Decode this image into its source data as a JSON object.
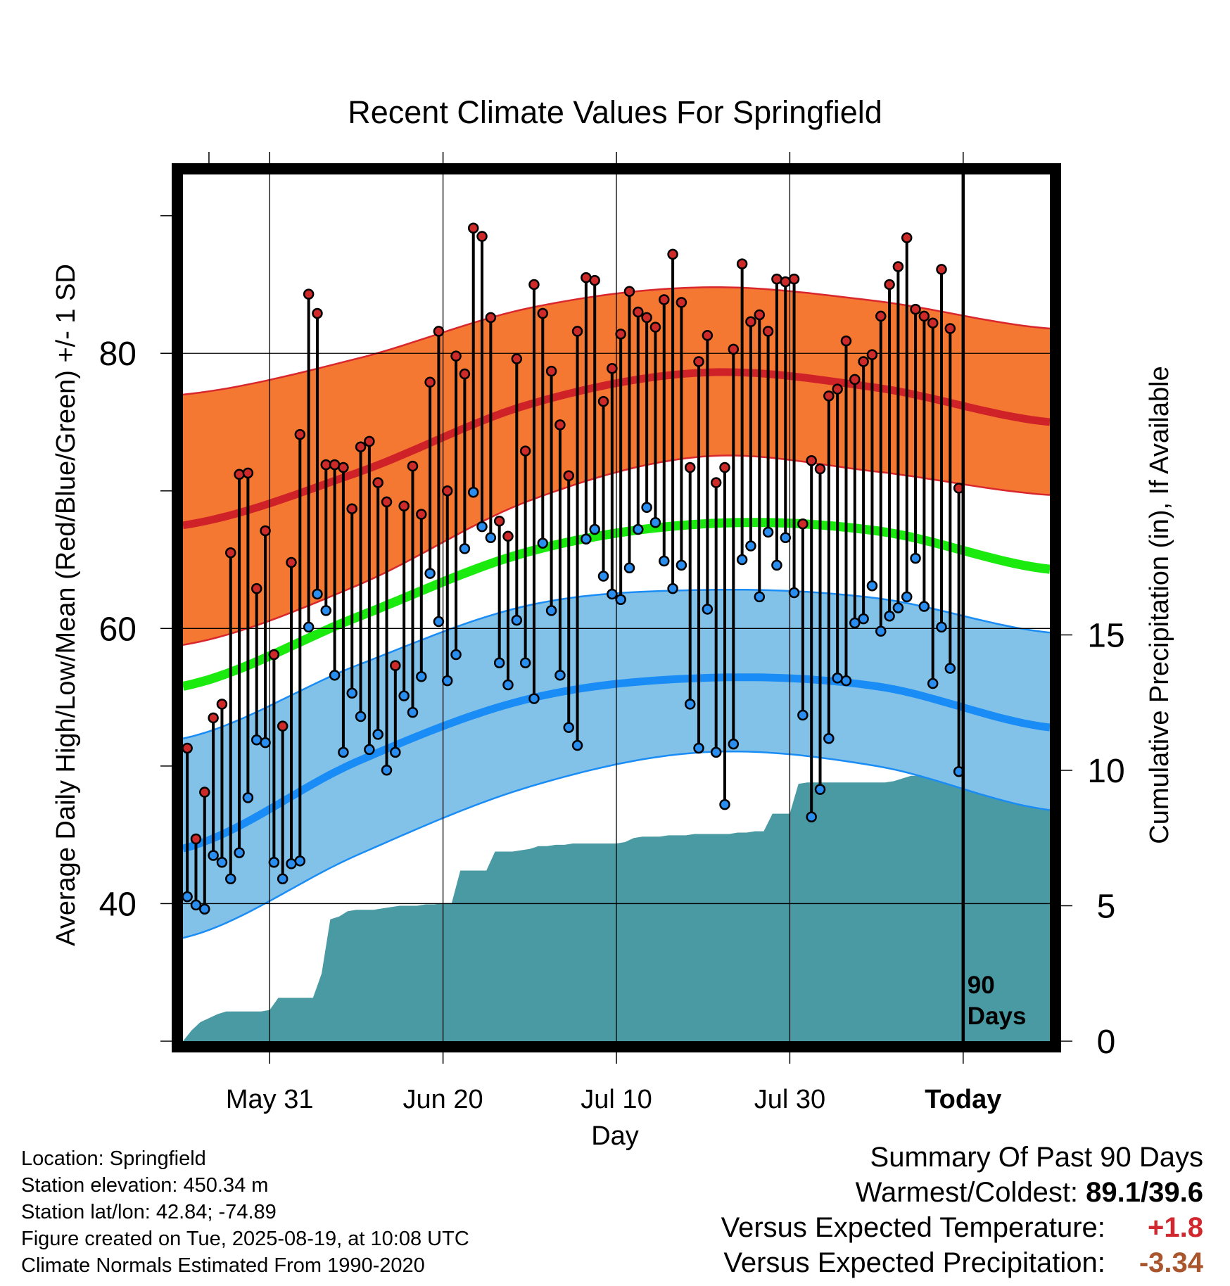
{
  "chart_data": {
    "type": "line",
    "title": "Recent Climate Values For Springfield",
    "xlabel": "Day",
    "ylabel": "Average Daily High/Low/Mean (Red/Blue/Green) +/- 1 SD",
    "y2label": "Cumulative Precipitation (in), If Available",
    "x_tick_labels": [
      "May 31",
      "Jun 20",
      "Jul 10",
      "Jul 30",
      "Today"
    ],
    "y_ticks": [
      40,
      60,
      80
    ],
    "y_minor_ticks": [
      30,
      50,
      70,
      90
    ],
    "y2_ticks": [
      0,
      5,
      10,
      15
    ],
    "ylim": [
      30,
      93
    ],
    "y2lim": [
      0,
      32
    ],
    "days_shown": 100,
    "today_day": 90,
    "marker_label_line1": "90",
    "marker_label_line2": "Days",
    "grid": true,
    "normals": {
      "day": [
        0,
        20,
        40,
        60,
        80,
        100
      ],
      "high_mean": [
        67.5,
        71.3,
        76.3,
        78.6,
        77.5,
        75.0
      ],
      "high_sd_upper": [
        77.0,
        79.6,
        83.3,
        84.8,
        83.8,
        81.8
      ],
      "high_sd_lower": [
        58.8,
        63.1,
        69.3,
        72.5,
        71.4,
        69.7
      ],
      "mean": [
        55.8,
        60.8,
        65.6,
        67.6,
        67.1,
        64.3
      ],
      "low_mean": [
        44.0,
        50.3,
        54.9,
        56.4,
        55.8,
        52.8
      ],
      "low_sd_upper": [
        52.0,
        57.3,
        61.7,
        62.8,
        62.2,
        59.7
      ],
      "low_sd_lower": [
        37.5,
        43.5,
        48.5,
        51.0,
        50.0,
        46.8
      ]
    },
    "daily_high": [
      51.3,
      44.7,
      48.1,
      53.5,
      54.5,
      65.5,
      71.2,
      71.3,
      62.9,
      67.1,
      58.1,
      52.9,
      64.8,
      74.1,
      84.3,
      82.9,
      71.9,
      71.9,
      71.7,
      68.7,
      73.2,
      73.6,
      70.6,
      69.2,
      57.3,
      68.9,
      71.8,
      68.3,
      77.9,
      81.6,
      70.0,
      79.8,
      78.5,
      89.1,
      88.5,
      82.6,
      67.8,
      66.7,
      79.6,
      72.9,
      85.0,
      82.9,
      78.7,
      74.8,
      71.1,
      81.6,
      85.5,
      85.3,
      76.5,
      78.9,
      81.4,
      84.5,
      83.0,
      82.6,
      81.9,
      83.9,
      87.2,
      83.7,
      71.7,
      79.4,
      81.3,
      70.6,
      71.7,
      80.3,
      86.5,
      82.3,
      82.8,
      81.6,
      85.4,
      85.2,
      85.4,
      67.6,
      72.2,
      71.6,
      76.9,
      77.4,
      80.9,
      78.1,
      79.4,
      79.9,
      82.7,
      85.0,
      86.3,
      88.4,
      83.2,
      82.7,
      82.2,
      86.1,
      81.8,
      70.2
    ],
    "daily_low": [
      40.5,
      39.9,
      39.6,
      43.5,
      43.0,
      41.8,
      43.7,
      47.7,
      51.9,
      51.7,
      43.0,
      41.8,
      42.9,
      43.1,
      60.1,
      62.5,
      61.3,
      56.6,
      51.0,
      55.3,
      53.6,
      51.2,
      52.3,
      49.7,
      51.0,
      55.1,
      53.9,
      56.5,
      64.0,
      60.5,
      56.2,
      58.1,
      65.8,
      69.9,
      67.4,
      66.6,
      57.5,
      55.9,
      60.6,
      57.5,
      54.9,
      66.2,
      61.3,
      56.6,
      52.8,
      51.5,
      66.5,
      67.2,
      63.8,
      62.5,
      62.1,
      64.4,
      67.2,
      68.8,
      67.7,
      64.9,
      62.9,
      64.6,
      54.5,
      51.3,
      61.4,
      51.0,
      47.2,
      51.6,
      65.0,
      66.0,
      62.3,
      67.0,
      64.6,
      66.6,
      62.6,
      53.7,
      46.3,
      48.3,
      52.0,
      56.4,
      56.2,
      60.4,
      60.7,
      63.1,
      59.8,
      60.9,
      61.5,
      62.3,
      65.1,
      61.6,
      56.0,
      60.1,
      57.1,
      49.6
    ],
    "cumulative_precip": {
      "day": [
        0,
        1,
        2,
        3,
        4,
        5,
        6,
        7,
        8,
        9,
        10,
        11,
        12,
        13,
        14,
        15,
        16,
        17,
        18,
        19,
        20,
        21,
        22,
        23,
        24,
        25,
        26,
        27,
        28,
        29,
        30,
        31,
        32,
        33,
        34,
        35,
        36,
        37,
        38,
        39,
        40,
        41,
        42,
        43,
        44,
        45,
        46,
        47,
        48,
        49,
        50,
        51,
        52,
        53,
        54,
        55,
        56,
        57,
        58,
        59,
        60,
        61,
        62,
        63,
        64,
        65,
        66,
        67,
        68,
        69,
        70,
        71,
        72,
        73,
        74,
        75,
        76,
        77,
        78,
        79,
        80,
        81,
        82,
        83,
        84,
        85,
        86,
        87,
        88,
        89,
        90,
        100
      ],
      "value": [
        0.0,
        0.4,
        0.7,
        0.85,
        1.0,
        1.1,
        1.1,
        1.1,
        1.1,
        1.1,
        1.15,
        1.6,
        1.6,
        1.6,
        1.6,
        1.6,
        2.5,
        4.5,
        4.6,
        4.8,
        4.85,
        4.85,
        4.85,
        4.9,
        4.95,
        5.0,
        5.0,
        5.0,
        5.05,
        5.05,
        5.1,
        5.1,
        6.3,
        6.3,
        6.3,
        6.3,
        7.0,
        7.0,
        7.0,
        7.05,
        7.1,
        7.2,
        7.2,
        7.25,
        7.25,
        7.3,
        7.3,
        7.3,
        7.3,
        7.3,
        7.3,
        7.35,
        7.5,
        7.55,
        7.55,
        7.55,
        7.6,
        7.6,
        7.6,
        7.65,
        7.65,
        7.65,
        7.65,
        7.65,
        7.7,
        7.7,
        7.75,
        7.75,
        8.4,
        8.4,
        8.4,
        9.5,
        9.55,
        9.55,
        9.55,
        9.55,
        9.55,
        9.55,
        9.55,
        9.55,
        9.55,
        9.55,
        9.6,
        9.7,
        9.8,
        9.8,
        9.8,
        9.8,
        9.8,
        9.85,
        9.85,
        9.85
      ]
    }
  },
  "info": {
    "location": "Location: Springfield",
    "elevation": "Station elevation: 450.34 m",
    "latlon": "Station lat/lon: 42.84; -74.89",
    "created": "Figure created on Tue, 2025-08-19, at 10:08 UTC",
    "normals": "Climate Normals Estimated From 1990-2020"
  },
  "summary": {
    "title": "Summary Of Past 90 Days",
    "warmest_label": "Warmest/Coldest:",
    "warmest_value": "89.1/39.6",
    "temp_label": "Versus Expected Temperature:",
    "temp_value": "+1.8",
    "precip_label": "Versus Expected Precipitation:",
    "precip_value": "-3.34"
  },
  "colors": {
    "high_band": "#f47832",
    "high_edge": "#d9272e",
    "high_mean": "#cf2228",
    "low_band": "#83c2e8",
    "low_edge": "#1a8cf5",
    "low_mean": "#1a8cf5",
    "mean": "#1bea0f",
    "precip": "#4a9aa4",
    "high_dot": "#cf2a2a",
    "low_dot": "#2a8ef0"
  }
}
